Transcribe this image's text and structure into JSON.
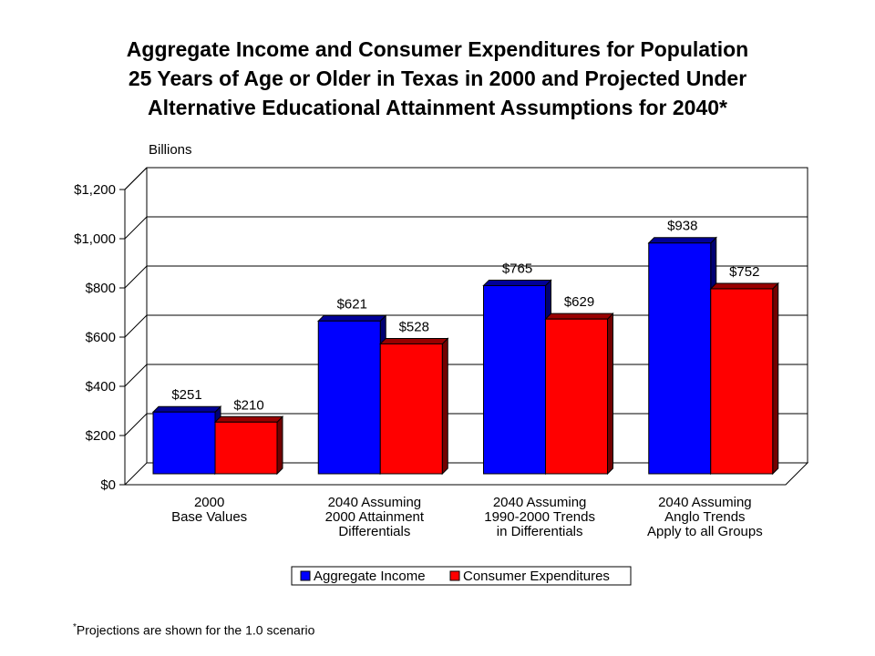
{
  "title_lines": [
    "Aggregate Income and Consumer Expenditures for Population",
    "25 Years of Age or Older in Texas in 2000 and Projected Under",
    "Alternative Educational Attainment Assumptions for 2040*"
  ],
  "footnote": {
    "marker": "*",
    "text": "Projections are shown for the 1.0 scenario"
  },
  "colors": {
    "aggregate_income": "#0000FF",
    "consumer_expenditures": "#FF0000"
  },
  "chart_data": {
    "type": "bar",
    "title": "Aggregate Income and Consumer Expenditures for Population 25 Years of Age or Older in Texas in 2000 and Projected Under Alternative Educational Attainment Assumptions for 2040*",
    "unit_label": "Billions",
    "categories": [
      [
        "2000",
        "Base Values"
      ],
      [
        "2040 Assuming",
        "2000 Attainment",
        "Differentials"
      ],
      [
        "2040 Assuming",
        "1990-2000 Trends",
        "in Differentials"
      ],
      [
        "2040 Assuming",
        "Anglo Trends",
        "Apply to all Groups"
      ]
    ],
    "series": [
      {
        "name": "Aggregate Income",
        "values": [
          251,
          621,
          765,
          938
        ],
        "labels": [
          "$251",
          "$621",
          "$765",
          "$938"
        ]
      },
      {
        "name": "Consumer Expenditures",
        "values": [
          210,
          528,
          629,
          752
        ],
        "labels": [
          "$210",
          "$528",
          "$629",
          "$752"
        ]
      }
    ],
    "ylim": [
      0,
      1200
    ],
    "yticks": [
      0,
      200,
      400,
      600,
      800,
      1000,
      1200
    ],
    "ytick_labels": [
      "$0",
      "$200",
      "$400",
      "$600",
      "$800",
      "$1,000",
      "$1,200"
    ],
    "grid": true,
    "legend": "bottom",
    "style": "3d"
  }
}
